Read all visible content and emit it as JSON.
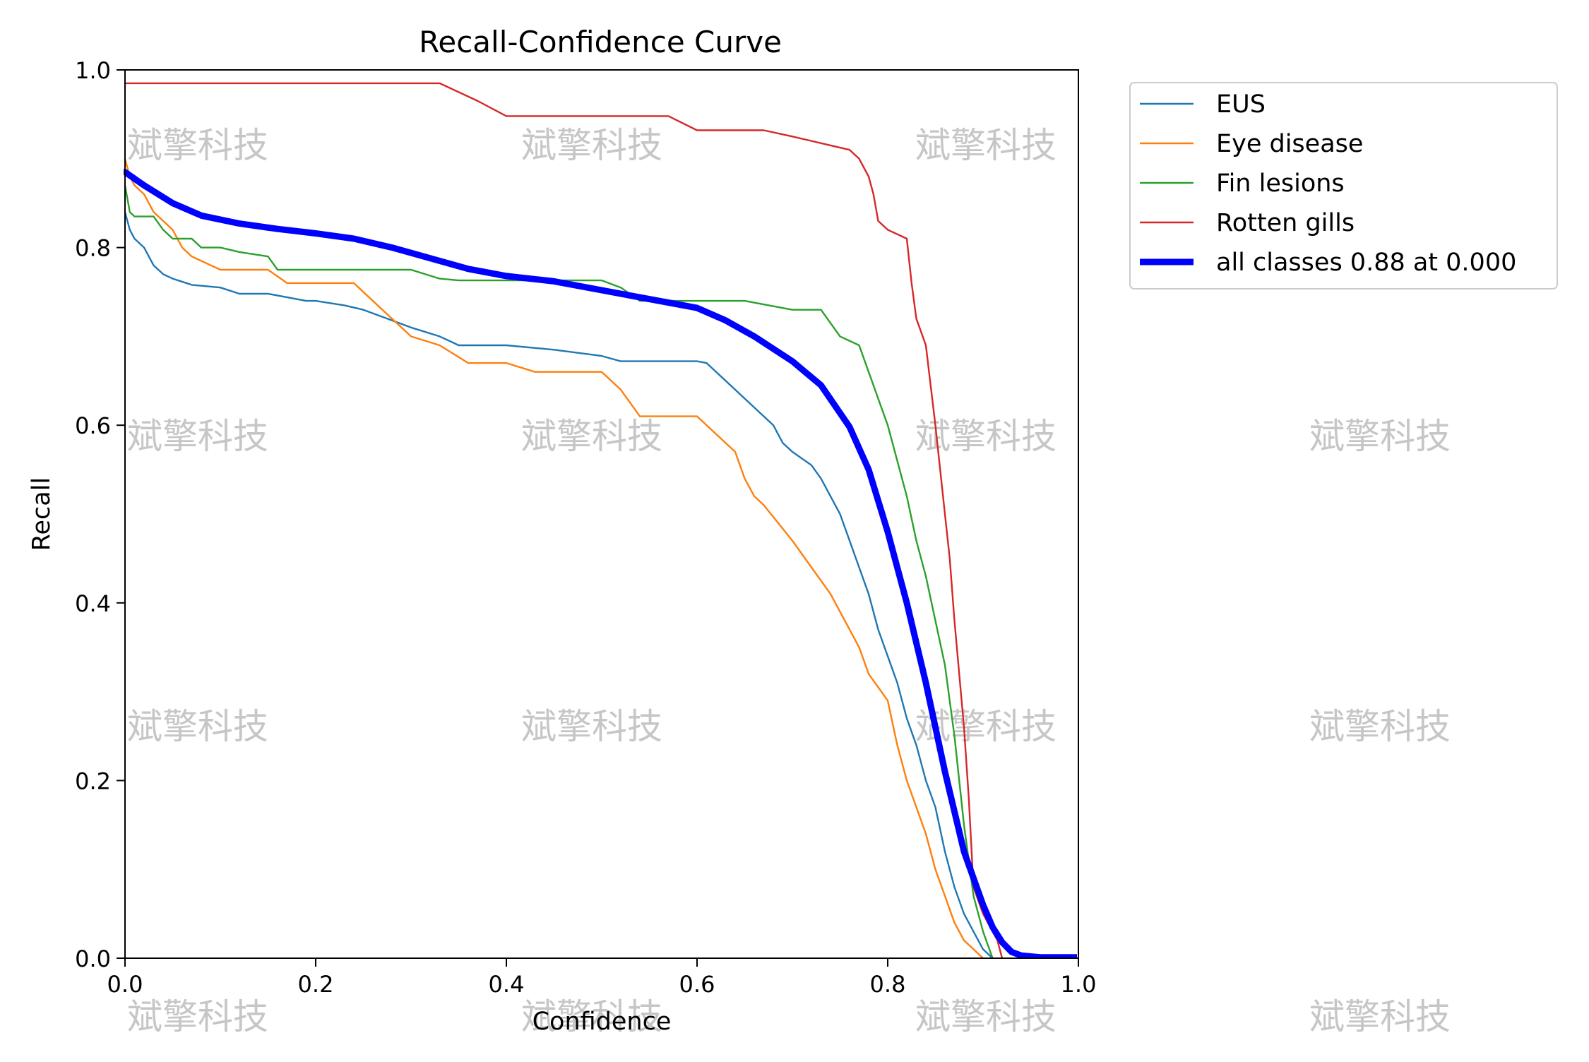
{
  "chart_data": {
    "type": "line",
    "title": "Recall-Confidence Curve",
    "xlabel": "Confidence",
    "ylabel": "Recall",
    "xlim": [
      0,
      1
    ],
    "ylim": [
      0,
      1
    ],
    "xticks": [
      "0.0",
      "0.2",
      "0.4",
      "0.6",
      "0.8",
      "1.0"
    ],
    "yticks": [
      "0.0",
      "0.2",
      "0.4",
      "0.6",
      "0.8",
      "1.0"
    ],
    "grid": false,
    "legend_position": "outside-top-right",
    "watermark_text": "斌擎科技",
    "series": [
      {
        "name": "EUS",
        "color": "#1f77b4",
        "x": [
          0.0,
          0.005,
          0.01,
          0.02,
          0.03,
          0.04,
          0.05,
          0.07,
          0.1,
          0.12,
          0.15,
          0.19,
          0.2,
          0.23,
          0.25,
          0.3,
          0.33,
          0.35,
          0.4,
          0.45,
          0.5,
          0.52,
          0.55,
          0.6,
          0.61,
          0.63,
          0.65,
          0.67,
          0.68,
          0.69,
          0.7,
          0.72,
          0.73,
          0.74,
          0.75,
          0.76,
          0.77,
          0.78,
          0.79,
          0.8,
          0.81,
          0.82,
          0.83,
          0.84,
          0.85,
          0.86,
          0.87,
          0.88,
          0.89,
          0.9,
          0.91
        ],
        "y": [
          0.84,
          0.82,
          0.81,
          0.8,
          0.78,
          0.77,
          0.765,
          0.758,
          0.755,
          0.748,
          0.748,
          0.74,
          0.74,
          0.735,
          0.73,
          0.71,
          0.7,
          0.69,
          0.69,
          0.685,
          0.678,
          0.672,
          0.672,
          0.672,
          0.67,
          0.65,
          0.63,
          0.61,
          0.6,
          0.58,
          0.57,
          0.555,
          0.54,
          0.52,
          0.5,
          0.47,
          0.44,
          0.41,
          0.37,
          0.34,
          0.31,
          0.27,
          0.24,
          0.2,
          0.17,
          0.12,
          0.08,
          0.05,
          0.03,
          0.01,
          0.0
        ]
      },
      {
        "name": "Eye disease",
        "color": "#ff7f0e",
        "x": [
          0.0,
          0.005,
          0.01,
          0.02,
          0.03,
          0.04,
          0.05,
          0.06,
          0.07,
          0.1,
          0.15,
          0.17,
          0.2,
          0.24,
          0.27,
          0.29,
          0.3,
          0.33,
          0.36,
          0.4,
          0.43,
          0.5,
          0.52,
          0.54,
          0.6,
          0.62,
          0.64,
          0.65,
          0.66,
          0.67,
          0.7,
          0.72,
          0.74,
          0.75,
          0.77,
          0.78,
          0.8,
          0.81,
          0.82,
          0.83,
          0.84,
          0.85,
          0.86,
          0.87,
          0.88,
          0.89,
          0.9
        ],
        "y": [
          0.9,
          0.88,
          0.87,
          0.86,
          0.84,
          0.83,
          0.82,
          0.8,
          0.79,
          0.775,
          0.775,
          0.76,
          0.76,
          0.76,
          0.73,
          0.71,
          0.7,
          0.69,
          0.67,
          0.67,
          0.66,
          0.66,
          0.64,
          0.61,
          0.61,
          0.59,
          0.57,
          0.54,
          0.52,
          0.51,
          0.47,
          0.44,
          0.41,
          0.39,
          0.35,
          0.32,
          0.29,
          0.24,
          0.2,
          0.17,
          0.14,
          0.1,
          0.07,
          0.04,
          0.02,
          0.01,
          0.0
        ]
      },
      {
        "name": "Fin lesions",
        "color": "#2ca02c",
        "x": [
          0.0,
          0.005,
          0.01,
          0.03,
          0.04,
          0.05,
          0.06,
          0.07,
          0.08,
          0.1,
          0.12,
          0.15,
          0.16,
          0.2,
          0.25,
          0.3,
          0.33,
          0.35,
          0.4,
          0.45,
          0.5,
          0.52,
          0.54,
          0.6,
          0.65,
          0.7,
          0.73,
          0.75,
          0.77,
          0.78,
          0.79,
          0.8,
          0.81,
          0.82,
          0.83,
          0.84,
          0.85,
          0.86,
          0.87,
          0.88,
          0.89,
          0.9,
          0.91
        ],
        "y": [
          0.87,
          0.84,
          0.835,
          0.835,
          0.82,
          0.81,
          0.81,
          0.81,
          0.8,
          0.8,
          0.795,
          0.79,
          0.775,
          0.775,
          0.775,
          0.775,
          0.765,
          0.763,
          0.763,
          0.763,
          0.763,
          0.755,
          0.74,
          0.74,
          0.74,
          0.73,
          0.73,
          0.7,
          0.69,
          0.66,
          0.63,
          0.6,
          0.56,
          0.52,
          0.47,
          0.43,
          0.38,
          0.33,
          0.25,
          0.15,
          0.07,
          0.03,
          0.0
        ]
      },
      {
        "name": "Rotten gills",
        "color": "#d62728",
        "x": [
          0.0,
          0.3,
          0.33,
          0.37,
          0.4,
          0.45,
          0.5,
          0.55,
          0.57,
          0.6,
          0.62,
          0.67,
          0.7,
          0.74,
          0.76,
          0.77,
          0.78,
          0.785,
          0.79,
          0.8,
          0.82,
          0.825,
          0.83,
          0.84,
          0.85,
          0.86,
          0.865,
          0.87,
          0.88,
          0.885,
          0.89,
          0.9,
          0.91,
          0.915,
          0.92
        ],
        "y": [
          0.985,
          0.985,
          0.985,
          0.965,
          0.948,
          0.948,
          0.948,
          0.948,
          0.948,
          0.932,
          0.932,
          0.932,
          0.925,
          0.915,
          0.91,
          0.9,
          0.88,
          0.86,
          0.83,
          0.82,
          0.81,
          0.76,
          0.72,
          0.69,
          0.6,
          0.5,
          0.45,
          0.38,
          0.26,
          0.18,
          0.08,
          0.05,
          0.03,
          0.02,
          0.0
        ]
      },
      {
        "name": "all classes 0.88 at 0.000",
        "color": "#0000ff",
        "x": [
          0.0,
          0.02,
          0.05,
          0.08,
          0.12,
          0.16,
          0.2,
          0.24,
          0.28,
          0.32,
          0.36,
          0.4,
          0.45,
          0.5,
          0.55,
          0.6,
          0.63,
          0.66,
          0.7,
          0.73,
          0.76,
          0.78,
          0.8,
          0.82,
          0.84,
          0.86,
          0.88,
          0.9,
          0.91,
          0.92,
          0.93,
          0.94,
          0.96,
          0.98,
          1.0
        ],
        "y": [
          0.885,
          0.87,
          0.85,
          0.836,
          0.827,
          0.821,
          0.816,
          0.81,
          0.8,
          0.788,
          0.776,
          0.768,
          0.762,
          0.752,
          0.742,
          0.732,
          0.718,
          0.7,
          0.672,
          0.645,
          0.598,
          0.55,
          0.48,
          0.4,
          0.31,
          0.21,
          0.12,
          0.06,
          0.035,
          0.018,
          0.007,
          0.003,
          0.001,
          0.001,
          0.001
        ]
      }
    ]
  }
}
